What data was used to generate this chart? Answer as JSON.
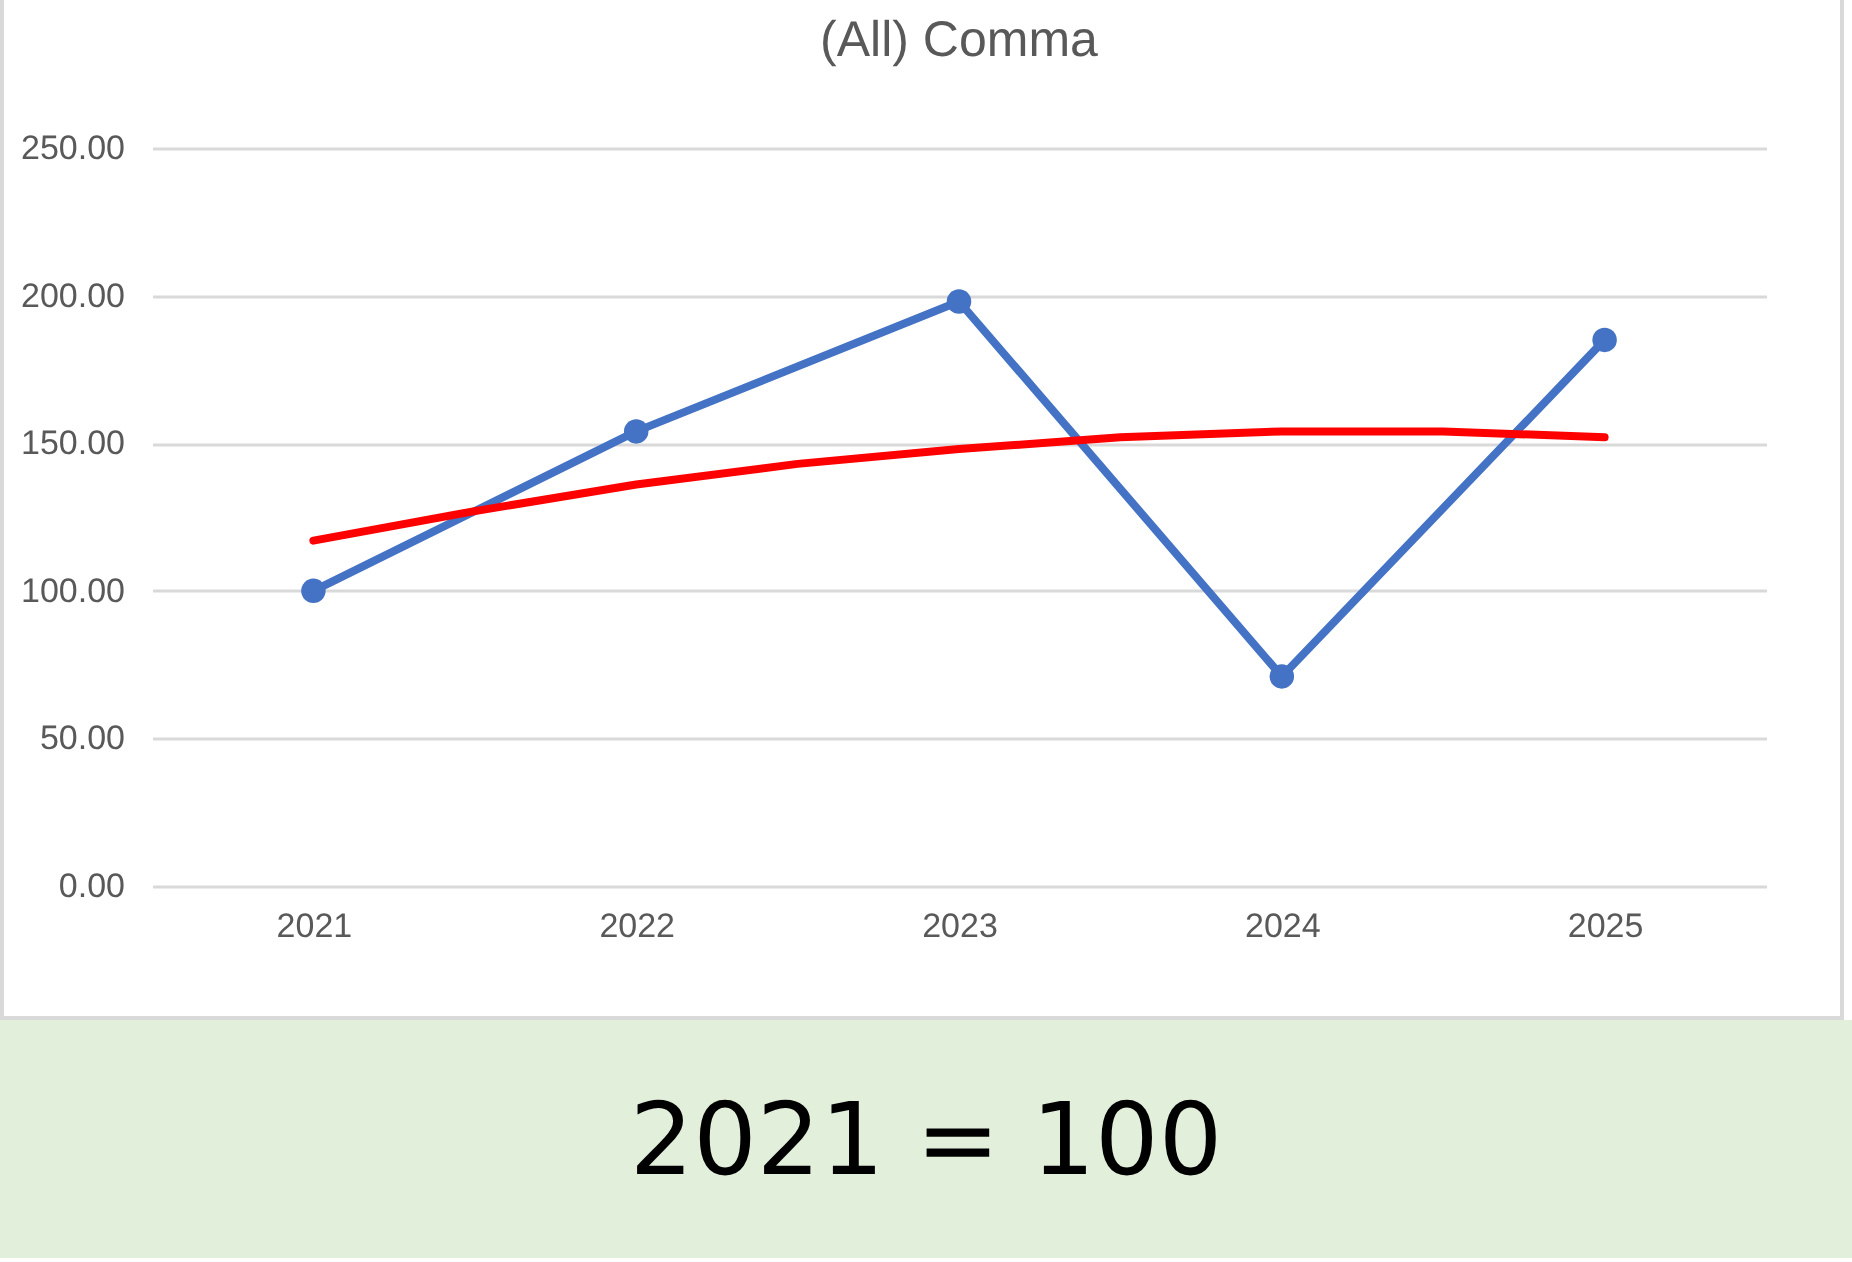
{
  "chart_data": {
    "type": "line",
    "title": "(All) Comma",
    "x": [
      2021,
      2022,
      2023,
      2024,
      2025
    ],
    "series": [
      {
        "color": "#4472c4",
        "marker": "circle",
        "values": [
          100,
          154,
          198,
          71,
          185
        ]
      },
      {
        "color": "#ff0000",
        "marker": "none",
        "x": [
          2021,
          2021.5,
          2022,
          2022.5,
          2023,
          2023.5,
          2024,
          2024.5,
          2025
        ],
        "values": [
          117,
          127,
          136,
          143,
          148,
          152,
          154,
          154,
          152
        ]
      }
    ],
    "xlim": [
      2020.5,
      2025.5
    ],
    "xticks": [
      2021,
      2022,
      2023,
      2024,
      2025
    ],
    "ylim": [
      0,
      250
    ],
    "yticks": [
      {
        "value": 0,
        "label": "0.00"
      },
      {
        "value": 50,
        "label": "50.00"
      },
      {
        "value": 100,
        "label": "100.00"
      },
      {
        "value": 150,
        "label": "150.00"
      },
      {
        "value": 200,
        "label": "200.00"
      },
      {
        "value": 250,
        "label": "250.00"
      }
    ],
    "grid": "y",
    "annotations": [
      "2021 = 100"
    ]
  }
}
